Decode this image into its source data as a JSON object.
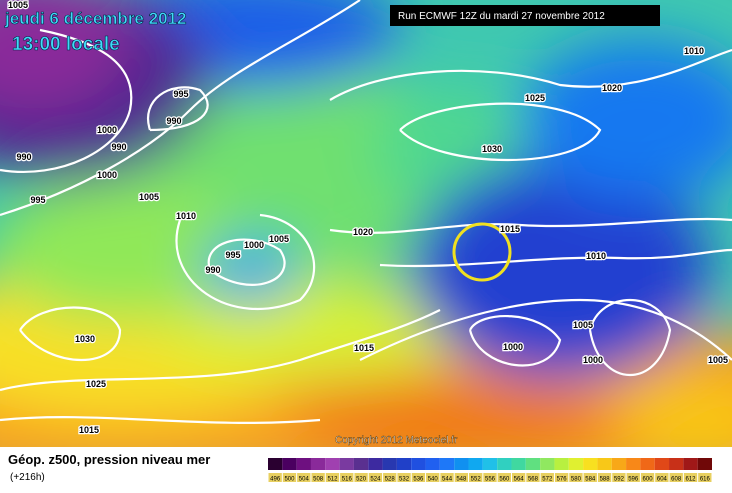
{
  "header": {
    "date": "jeudi 6 décembre 2012",
    "time": "13:00 locale",
    "run": "Run ECMWF 12Z du mardi 27 novembre 2012"
  },
  "copyright": "Copyright 2012 Meteociel.fr",
  "isobar_labels": [
    "1005",
    "995",
    "990",
    "1000",
    "990",
    "990",
    "1000",
    "995",
    "1005",
    "1010",
    "1000",
    "1005",
    "995",
    "990",
    "1030",
    "1025",
    "1015",
    "1015",
    "1020",
    "1015",
    "1010",
    "1005",
    "1000",
    "1000",
    "1005",
    "1025",
    "1020",
    "1030",
    "1010"
  ],
  "legend": {
    "title": "Géop. z500, pression niveau mer",
    "lead": "(+216h)",
    "scale": [
      496,
      500,
      504,
      508,
      512,
      516,
      520,
      524,
      528,
      532,
      536,
      540,
      544,
      548,
      552,
      556,
      560,
      564,
      568,
      572,
      576,
      580,
      584,
      588,
      592,
      596,
      600,
      604,
      608,
      612,
      616
    ],
    "colors": [
      "#2a0030",
      "#4a0060",
      "#6e1080",
      "#8a2a9a",
      "#a040b0",
      "#7a3aa0",
      "#5a3090",
      "#3d2aa0",
      "#2838b0",
      "#2040c8",
      "#2050e0",
      "#2060f0",
      "#1e78f8",
      "#1090f0",
      "#10a8f0",
      "#20c0e8",
      "#30d0c0",
      "#40d8a0",
      "#60e080",
      "#90e860",
      "#b8f040",
      "#e0f030",
      "#f8e020",
      "#f8c818",
      "#f8a818",
      "#f88818",
      "#f06818",
      "#e04818",
      "#c83018",
      "#a01818",
      "#700808"
    ]
  }
}
